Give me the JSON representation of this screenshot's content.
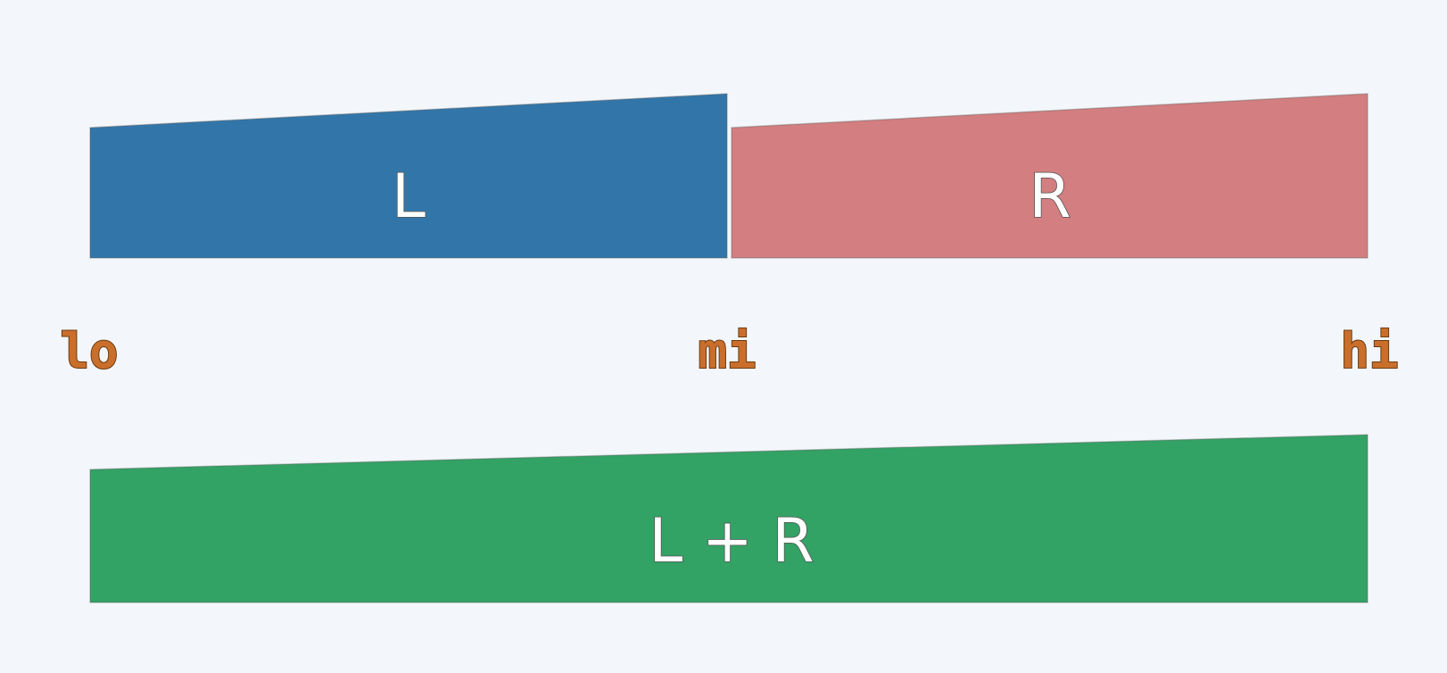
{
  "blocks": {
    "left": {
      "label": "L",
      "color": "#3276a9"
    },
    "right": {
      "label": "R",
      "color": "#d37e80"
    },
    "combined": {
      "label": "L + R",
      "color": "#33a265"
    }
  },
  "pointers": {
    "lo": "lo",
    "mi": "mi",
    "hi": "hi",
    "color": "#c96f2b"
  }
}
